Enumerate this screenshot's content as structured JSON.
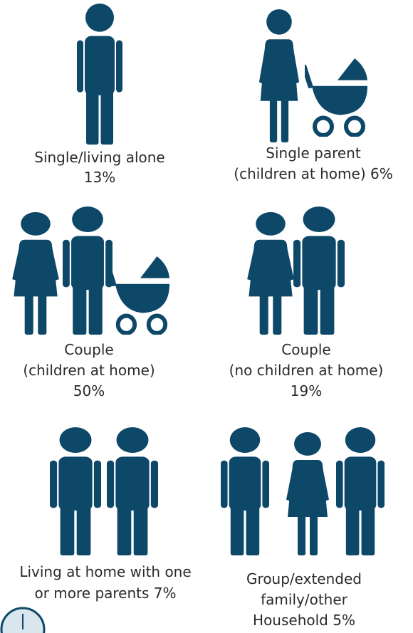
{
  "items": [
    {
      "lines": [
        "Single/living alone",
        "13%"
      ]
    },
    {
      "lines": [
        "Single parent",
        "(children at home) 6%"
      ]
    },
    {
      "lines": [
        "Couple",
        "(children at home)",
        "50%"
      ]
    },
    {
      "lines": [
        "Couple",
        "(no children at home)",
        "19%"
      ]
    },
    {
      "lines": [
        "Living at home with one",
        "or more parents 7%"
      ]
    },
    {
      "lines": [
        "Group/extended",
        "family/other",
        "Household 5%"
      ]
    }
  ]
}
